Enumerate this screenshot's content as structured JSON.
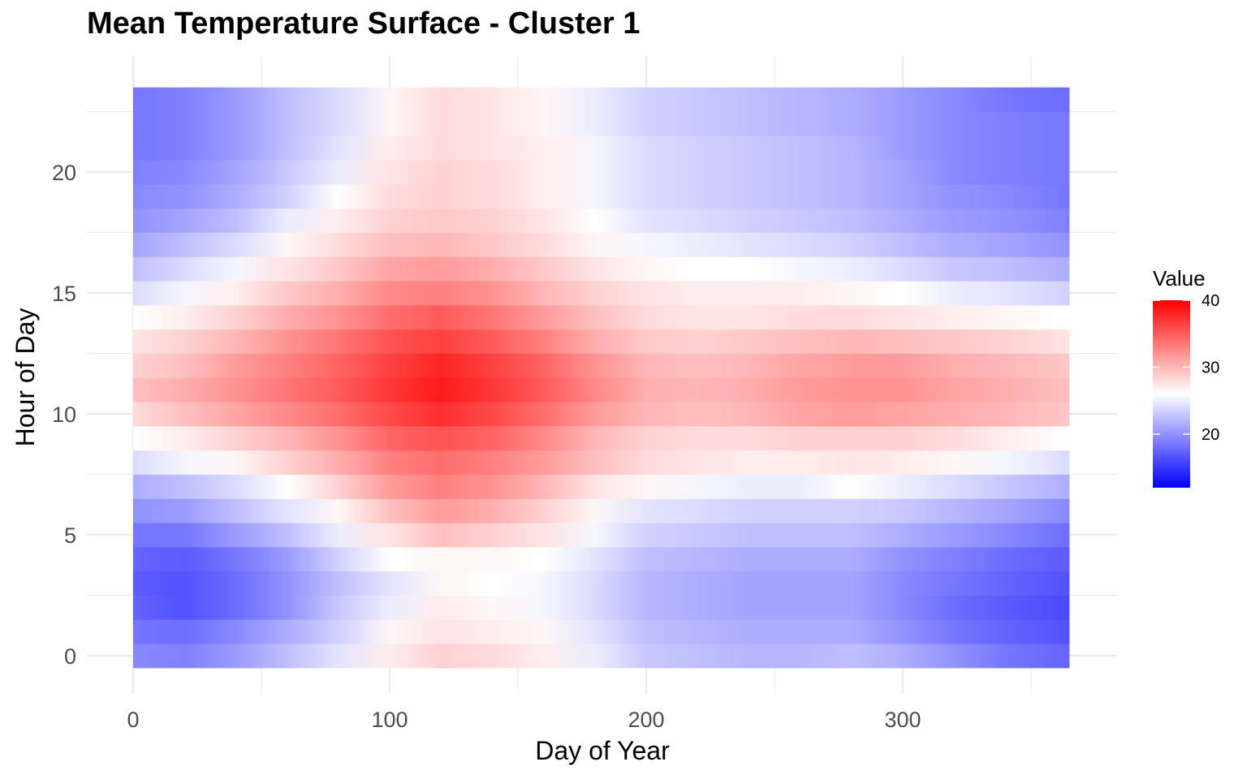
{
  "chart_data": {
    "type": "heatmap",
    "title": "Mean Temperature Surface - Cluster 1",
    "xlabel": "Day of Year",
    "ylabel": "Hour of Day",
    "xlim": [
      0,
      365
    ],
    "ylim": [
      0,
      23
    ],
    "x_ticks": [
      0,
      100,
      200,
      300
    ],
    "y_ticks": [
      0,
      5,
      10,
      15,
      20
    ],
    "grid": true,
    "legend": {
      "title": "Value",
      "placement": "right",
      "ticks": [
        20,
        30,
        40
      ],
      "min": 12,
      "max": 40,
      "midpoint": 26,
      "low_color": "#0000ff",
      "mid_color": "#ffffff",
      "high_color": "#ff0000"
    },
    "sample_days": [
      0,
      20,
      40,
      60,
      80,
      100,
      120,
      140,
      160,
      180,
      200,
      220,
      240,
      260,
      280,
      300,
      320,
      340,
      365
    ],
    "z": [
      [
        19.5,
        19.0,
        20.5,
        22.5,
        24.5,
        27.0,
        28.5,
        28.0,
        27.0,
        25.0,
        23.0,
        22.5,
        22.0,
        22.0,
        22.5,
        21.5,
        20.0,
        18.5,
        17.5
      ],
      [
        18.5,
        18.0,
        19.5,
        21.5,
        23.5,
        26.5,
        27.5,
        27.0,
        26.5,
        24.5,
        22.5,
        22.0,
        21.5,
        21.5,
        21.5,
        20.0,
        18.5,
        17.5,
        16.5
      ],
      [
        17.5,
        16.5,
        18.0,
        20.0,
        23.0,
        25.0,
        27.0,
        26.5,
        25.5,
        24.0,
        22.0,
        21.5,
        21.0,
        21.0,
        21.0,
        19.5,
        18.0,
        17.0,
        16.0
      ],
      [
        17.0,
        16.5,
        18.0,
        20.0,
        22.5,
        24.5,
        26.5,
        26.0,
        25.5,
        24.0,
        22.0,
        21.5,
        21.0,
        21.0,
        21.0,
        19.5,
        18.5,
        17.5,
        16.5
      ],
      [
        17.5,
        17.0,
        18.5,
        20.5,
        23.5,
        26.0,
        26.5,
        26.5,
        26.0,
        24.5,
        22.5,
        22.0,
        21.5,
        21.5,
        21.5,
        20.0,
        19.0,
        18.0,
        17.0
      ],
      [
        18.5,
        18.5,
        20.5,
        22.5,
        25.0,
        27.5,
        29.5,
        28.5,
        27.5,
        25.5,
        23.5,
        23.0,
        22.5,
        22.5,
        22.5,
        21.5,
        20.5,
        19.5,
        18.0
      ],
      [
        20.0,
        20.5,
        22.5,
        24.5,
        26.5,
        29.5,
        31.5,
        30.5,
        28.5,
        26.5,
        24.5,
        24.0,
        23.5,
        23.5,
        23.5,
        23.0,
        22.0,
        21.0,
        19.5
      ],
      [
        21.5,
        22.5,
        24.0,
        26.0,
        28.5,
        31.5,
        33.0,
        32.0,
        30.0,
        27.5,
        26.5,
        25.5,
        25.0,
        25.0,
        26.0,
        25.0,
        24.0,
        23.0,
        21.5
      ],
      [
        24.0,
        25.5,
        26.5,
        28.5,
        30.5,
        33.0,
        34.0,
        33.0,
        31.5,
        29.5,
        28.0,
        27.5,
        27.0,
        27.0,
        27.5,
        27.0,
        26.5,
        25.5,
        24.0
      ],
      [
        26.0,
        27.0,
        28.5,
        30.0,
        32.0,
        34.5,
        35.5,
        34.5,
        32.5,
        30.0,
        28.5,
        28.0,
        28.0,
        28.5,
        28.5,
        28.5,
        28.0,
        27.0,
        26.0
      ],
      [
        28.0,
        29.5,
        31.0,
        32.5,
        34.0,
        36.0,
        37.5,
        36.0,
        34.0,
        31.5,
        30.0,
        29.5,
        30.0,
        31.0,
        31.5,
        31.0,
        30.5,
        30.0,
        29.0
      ],
      [
        29.5,
        30.5,
        32.0,
        33.5,
        35.0,
        37.0,
        38.5,
        37.0,
        35.0,
        32.5,
        30.5,
        30.0,
        30.5,
        31.5,
        32.0,
        32.0,
        31.0,
        30.5,
        29.5
      ],
      [
        28.5,
        29.5,
        31.5,
        33.0,
        34.5,
        36.5,
        38.0,
        36.5,
        34.5,
        32.0,
        30.0,
        29.5,
        30.0,
        31.0,
        31.5,
        31.5,
        30.5,
        30.0,
        29.0
      ],
      [
        27.5,
        28.5,
        30.0,
        32.0,
        33.5,
        35.5,
        36.5,
        35.0,
        33.0,
        30.5,
        29.0,
        28.5,
        29.0,
        29.5,
        30.0,
        29.5,
        29.0,
        28.5,
        27.5
      ],
      [
        26.0,
        27.0,
        28.5,
        30.5,
        32.0,
        34.0,
        35.0,
        33.5,
        31.5,
        29.5,
        28.0,
        27.5,
        27.5,
        28.0,
        28.0,
        27.5,
        27.0,
        26.5,
        26.0
      ],
      [
        24.0,
        25.5,
        27.0,
        29.0,
        30.5,
        32.5,
        33.0,
        32.0,
        30.0,
        28.5,
        27.5,
        27.0,
        27.0,
        27.0,
        26.5,
        26.0,
        25.0,
        24.5,
        23.5
      ],
      [
        22.5,
        24.0,
        25.5,
        27.5,
        29.0,
        31.0,
        31.5,
        30.5,
        29.0,
        27.5,
        26.5,
        26.0,
        26.0,
        25.5,
        25.0,
        24.0,
        23.0,
        22.5,
        21.5
      ],
      [
        21.0,
        22.5,
        24.0,
        26.5,
        28.0,
        29.5,
        30.0,
        29.0,
        28.0,
        26.5,
        25.5,
        25.0,
        24.5,
        24.0,
        23.5,
        22.5,
        21.5,
        21.0,
        20.0
      ],
      [
        20.0,
        21.0,
        22.5,
        25.0,
        27.0,
        28.5,
        29.0,
        28.5,
        27.5,
        26.0,
        24.5,
        24.0,
        23.5,
        23.0,
        22.5,
        21.5,
        20.5,
        20.0,
        19.0
      ],
      [
        19.5,
        20.0,
        21.5,
        23.5,
        26.0,
        28.0,
        28.5,
        28.0,
        27.0,
        25.5,
        24.0,
        23.5,
        23.0,
        22.5,
        22.0,
        21.0,
        20.0,
        19.5,
        18.5
      ],
      [
        19.0,
        19.5,
        21.0,
        23.0,
        25.0,
        27.5,
        28.5,
        28.0,
        27.0,
        25.5,
        24.0,
        23.5,
        23.0,
        22.5,
        22.0,
        21.0,
        19.5,
        19.0,
        18.5
      ],
      [
        18.5,
        19.0,
        20.5,
        22.5,
        24.5,
        27.0,
        28.0,
        27.5,
        27.0,
        25.5,
        24.0,
        23.5,
        23.0,
        22.5,
        22.0,
        20.5,
        19.5,
        19.0,
        18.5
      ],
      [
        18.5,
        19.0,
        20.5,
        22.5,
        24.0,
        26.5,
        28.0,
        27.5,
        26.5,
        25.0,
        23.5,
        23.0,
        22.5,
        22.0,
        21.5,
        20.5,
        19.5,
        19.0,
        18.5
      ],
      [
        18.5,
        19.0,
        20.5,
        22.5,
        24.0,
        26.5,
        28.0,
        27.5,
        26.5,
        25.0,
        23.5,
        23.0,
        22.5,
        22.0,
        21.5,
        20.5,
        19.5,
        18.5,
        18.0
      ]
    ]
  }
}
